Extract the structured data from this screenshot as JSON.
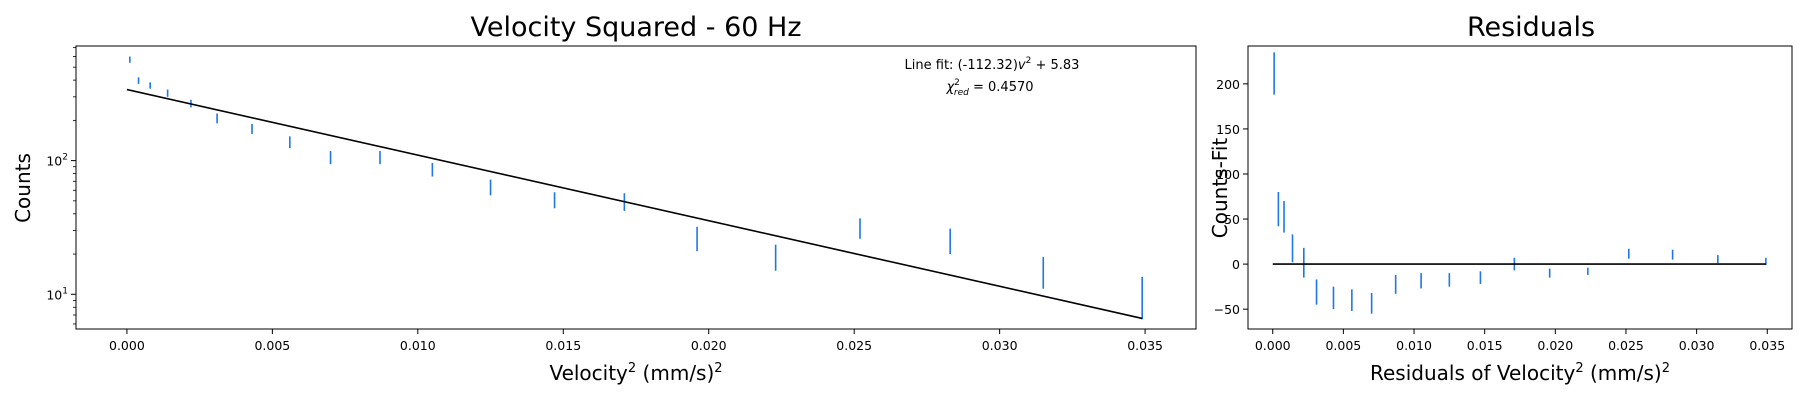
{
  "colors": {
    "errorbar": "#1f77e4",
    "fit_line": "#000000",
    "axes": "#000000",
    "background": "#ffffff"
  },
  "chart_data": [
    {
      "type": "scatter",
      "title": "Velocity Squared - 60 Hz",
      "xlabel_main": "Velocity",
      "xlabel_sup": "2",
      "xlabel_rest": " (mm/s)",
      "xlabel_rest_sup": "2",
      "ylabel": "Counts",
      "yscale": "log",
      "xlim": [
        -0.00175,
        0.03675
      ],
      "ylim": [
        5.5,
        720
      ],
      "xticks": [
        0.0,
        0.005,
        0.01,
        0.015,
        0.02,
        0.025,
        0.03,
        0.035
      ],
      "xtick_labels": [
        "0.000",
        "0.005",
        "0.010",
        "0.015",
        "0.020",
        "0.025",
        "0.030",
        "0.035"
      ],
      "yticks": [
        10,
        100
      ],
      "ytick_base": "10",
      "ytick_exps": [
        "1",
        "2"
      ],
      "annotation_line1_prefix": "Line fit: (-112.32)",
      "annotation_line1_var": "v",
      "annotation_line1_sup": "2",
      "annotation_line1_suffix": " + 5.83",
      "annotation_line2_chi": "χ",
      "annotation_line2_sup": "2",
      "annotation_line2_sub": "red",
      "annotation_line2_value": " = 0.4570",
      "fit": {
        "slope": -112.32,
        "intercept": 5.83,
        "x_range": [
          0.0,
          0.0349
        ]
      },
      "points": [
        {
          "x": 0.0001,
          "lo": 540,
          "hi": 600
        },
        {
          "x": 0.0004,
          "lo": 375,
          "hi": 420
        },
        {
          "x": 0.0008,
          "lo": 345,
          "hi": 385
        },
        {
          "x": 0.0014,
          "lo": 300,
          "hi": 340
        },
        {
          "x": 0.0022,
          "lo": 250,
          "hi": 285
        },
        {
          "x": 0.0031,
          "lo": 190,
          "hi": 225
        },
        {
          "x": 0.0043,
          "lo": 158,
          "hi": 188
        },
        {
          "x": 0.0056,
          "lo": 124,
          "hi": 152
        },
        {
          "x": 0.007,
          "lo": 94,
          "hi": 118
        },
        {
          "x": 0.0087,
          "lo": 94,
          "hi": 118
        },
        {
          "x": 0.0105,
          "lo": 76,
          "hi": 96
        },
        {
          "x": 0.0125,
          "lo": 55,
          "hi": 72
        },
        {
          "x": 0.0147,
          "lo": 44,
          "hi": 58
        },
        {
          "x": 0.0171,
          "lo": 42,
          "hi": 57
        },
        {
          "x": 0.0196,
          "lo": 21,
          "hi": 32
        },
        {
          "x": 0.0223,
          "lo": 15,
          "hi": 23.5
        },
        {
          "x": 0.0252,
          "lo": 26,
          "hi": 37
        },
        {
          "x": 0.0283,
          "lo": 20,
          "hi": 31
        },
        {
          "x": 0.0315,
          "lo": 11,
          "hi": 19
        },
        {
          "x": 0.0349,
          "lo": 6.5,
          "hi": 13.5
        }
      ]
    },
    {
      "type": "scatter",
      "title": "Residuals",
      "xlabel_main": "Residuals of Velocity",
      "xlabel_sup": "2",
      "xlabel_rest": " (mm/s)",
      "xlabel_rest_sup": "2",
      "ylabel": "Counts-Fit",
      "xlim": [
        -0.00175,
        0.03675
      ],
      "ylim": [
        -72,
        242
      ],
      "xticks": [
        0.0,
        0.005,
        0.01,
        0.015,
        0.02,
        0.025,
        0.03,
        0.035
      ],
      "xtick_labels": [
        "0.000",
        "0.005",
        "0.010",
        "0.015",
        "0.020",
        "0.025",
        "0.030",
        "0.035"
      ],
      "yticks": [
        -50,
        0,
        50,
        100,
        150,
        200
      ],
      "ytick_labels": [
        "−50",
        "0",
        "50",
        "100",
        "150",
        "200"
      ],
      "zero_line": {
        "y": 0,
        "x_range": [
          0.0,
          0.0349
        ]
      },
      "points": [
        {
          "x": 0.0001,
          "lo": 188,
          "hi": 235
        },
        {
          "x": 0.0004,
          "lo": 42,
          "hi": 80
        },
        {
          "x": 0.0008,
          "lo": 35,
          "hi": 70
        },
        {
          "x": 0.0014,
          "lo": 2,
          "hi": 33
        },
        {
          "x": 0.0022,
          "lo": -15,
          "hi": 18
        },
        {
          "x": 0.0031,
          "lo": -45,
          "hi": -17
        },
        {
          "x": 0.0043,
          "lo": -50,
          "hi": -25
        },
        {
          "x": 0.0056,
          "lo": -52,
          "hi": -28
        },
        {
          "x": 0.007,
          "lo": -55,
          "hi": -32
        },
        {
          "x": 0.0087,
          "lo": -33,
          "hi": -12
        },
        {
          "x": 0.0105,
          "lo": -27,
          "hi": -10
        },
        {
          "x": 0.0125,
          "lo": -25,
          "hi": -10
        },
        {
          "x": 0.0147,
          "lo": -22,
          "hi": -8
        },
        {
          "x": 0.0171,
          "lo": -7,
          "hi": 7
        },
        {
          "x": 0.0196,
          "lo": -15,
          "hi": -5
        },
        {
          "x": 0.0223,
          "lo": -12,
          "hi": -4
        },
        {
          "x": 0.0252,
          "lo": 6,
          "hi": 17
        },
        {
          "x": 0.0283,
          "lo": 5,
          "hi": 16
        },
        {
          "x": 0.0315,
          "lo": 1,
          "hi": 10
        },
        {
          "x": 0.0349,
          "lo": -1,
          "hi": 7
        }
      ]
    }
  ]
}
